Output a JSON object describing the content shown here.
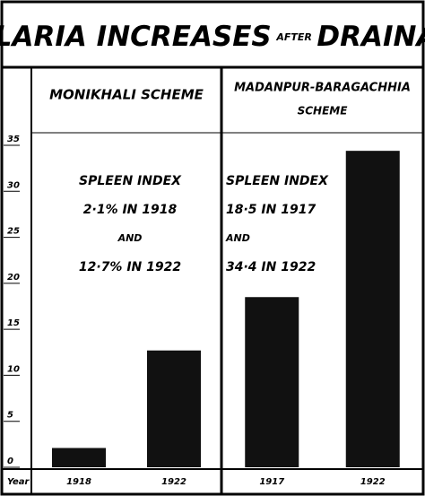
{
  "chart_data": [
    {
      "type": "bar",
      "title": [
        "MALARIA INCREASES",
        "AFTER",
        "DRAINAGE"
      ],
      "subtitle": [
        "MONIKHALI SCHEME"
      ],
      "annotations": [
        "SPLEEN INDEX",
        "2·1% IN 1918",
        "AND",
        "12·7% IN 1922"
      ],
      "x_label": "Year",
      "categories": [
        "1918",
        "1922"
      ],
      "values": [
        2.1,
        12.7
      ],
      "color": "#111111",
      "ylim": [
        0,
        35
      ],
      "yticks": [
        0,
        5,
        10,
        15,
        20,
        25,
        30,
        35
      ]
    },
    {
      "type": "bar",
      "subtitle": [
        "MADANPUR-BARAGACHHIA",
        "SCHEME"
      ],
      "annotations": [
        "SPLEEN INDEX",
        "18·5 IN 1917",
        "AND",
        "34·4 IN 1922"
      ],
      "categories": [
        "1917",
        "1922"
      ],
      "values": [
        18.5,
        34.4
      ],
      "color": "#111111",
      "ylim": [
        0,
        35
      ]
    }
  ]
}
